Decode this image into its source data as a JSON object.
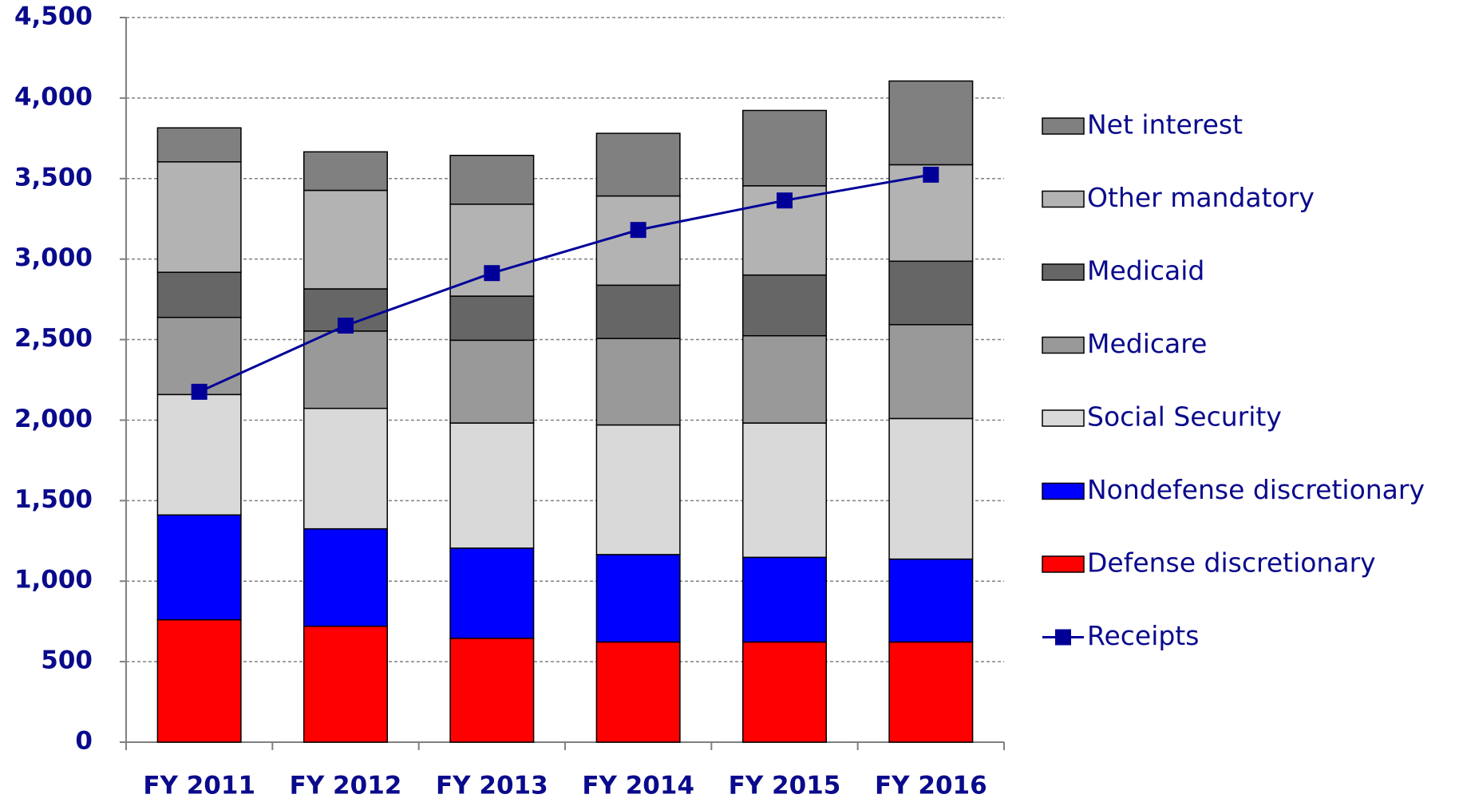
{
  "chart_data": {
    "type": "stacked-bar-line",
    "categories": [
      "FY 2011",
      "FY 2012",
      "FY 2013",
      "FY 2014",
      "FY 2015",
      "FY 2016"
    ],
    "series": [
      {
        "name": "Defense discretionary",
        "color": "#ff0000",
        "type": "bar",
        "values": [
          760,
          720,
          645,
          622,
          622,
          622
        ]
      },
      {
        "name": "Nondefense discretionary",
        "color": "#0000ff",
        "type": "bar",
        "values": [
          651,
          605,
          560,
          543,
          526,
          515
        ]
      },
      {
        "name": "Social Security",
        "color": "#d9d9d9",
        "type": "bar",
        "values": [
          748,
          748,
          777,
          805,
          834,
          873
        ]
      },
      {
        "name": "Medicare",
        "color": "#999999",
        "type": "bar",
        "values": [
          479,
          480,
          514,
          537,
          542,
          583
        ]
      },
      {
        "name": "Medicaid",
        "color": "#666666",
        "type": "bar",
        "values": [
          280,
          262,
          274,
          331,
          377,
          394
        ]
      },
      {
        "name": "Other mandatory",
        "color": "#b3b3b3",
        "type": "bar",
        "values": [
          686,
          612,
          571,
          554,
          554,
          599
        ]
      },
      {
        "name": "Net interest",
        "color": "#808080",
        "type": "bar",
        "values": [
          211,
          239,
          303,
          389,
          468,
          520
        ]
      },
      {
        "name": "Receipts",
        "color": "#000099",
        "type": "line",
        "values": [
          2176,
          2587,
          2913,
          3181,
          3364,
          3524
        ]
      }
    ],
    "ylim": [
      0,
      4500
    ],
    "yticks": [
      0,
      500,
      {
        "value": 1000,
        "label": "1,000"
      },
      {
        "value": 1500,
        "label": "1,500"
      },
      {
        "value": 2000,
        "label": "2,000"
      },
      {
        "value": 2500,
        "label": "2,500"
      },
      {
        "value": 3000,
        "label": "3,000"
      },
      {
        "value": 3500,
        "label": "3,500"
      },
      {
        "value": 4000,
        "label": "4,000"
      },
      {
        "value": 4500,
        "label": "4,500"
      }
    ],
    "grid": true,
    "legend": "right"
  }
}
